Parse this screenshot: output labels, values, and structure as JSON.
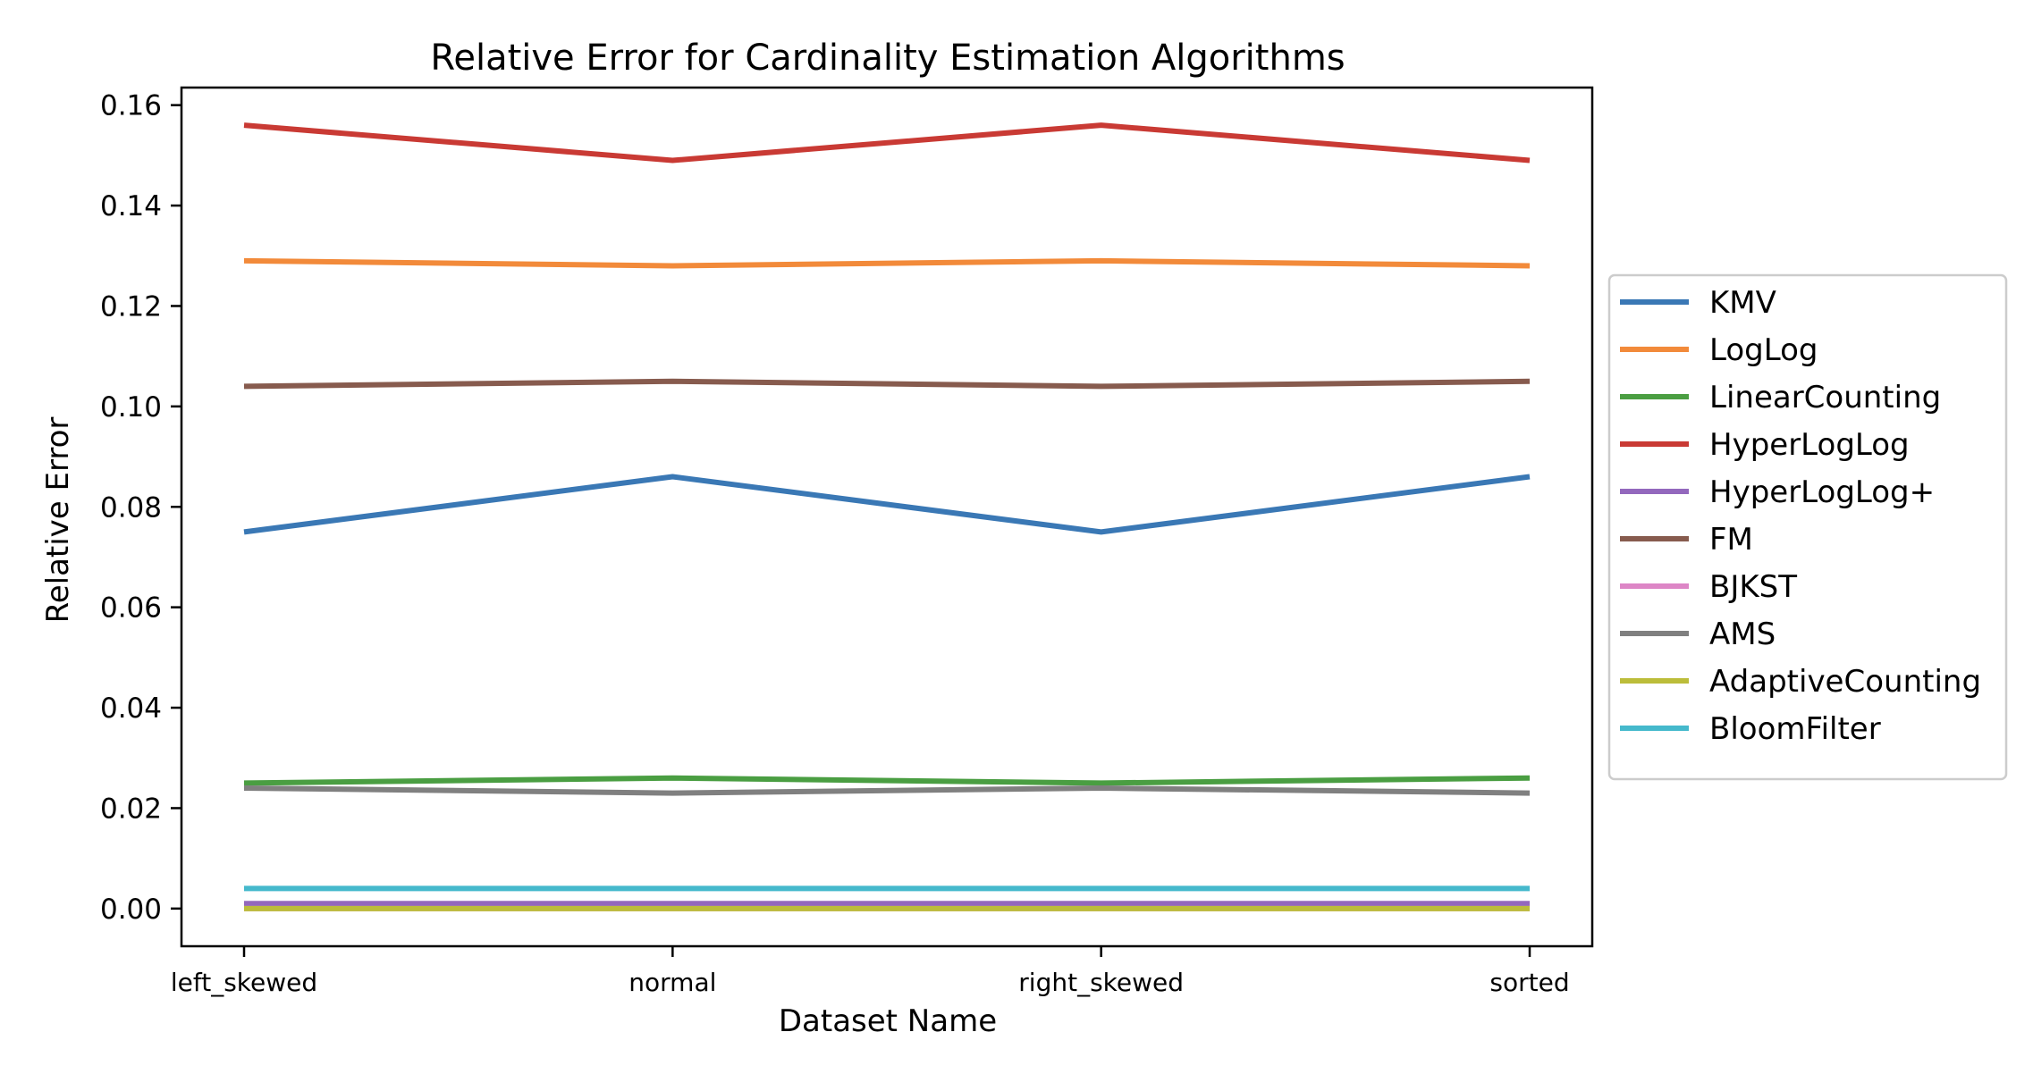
{
  "chart_data": {
    "type": "line",
    "title": "Relative Error for Cardinality Estimation Algorithms",
    "xlabel": "Dataset Name",
    "ylabel": "Relative Error",
    "categories": [
      "left_skewed",
      "normal",
      "right_skewed",
      "sorted"
    ],
    "ylim": [
      -0.0075,
      0.1635
    ],
    "yticks": [
      0.0,
      0.02,
      0.04,
      0.06,
      0.08,
      0.1,
      0.12,
      0.14,
      0.16
    ],
    "ytick_labels": [
      "0.00",
      "0.02",
      "0.04",
      "0.06",
      "0.08",
      "0.10",
      "0.12",
      "0.14",
      "0.16"
    ],
    "grid": false,
    "legend_position": "outside-right",
    "series": [
      {
        "name": "KMV",
        "color": "#3a78b5",
        "values": [
          0.075,
          0.086,
          0.075,
          0.086
        ]
      },
      {
        "name": "LogLog",
        "color": "#f28a3a",
        "values": [
          0.129,
          0.128,
          0.129,
          0.128
        ]
      },
      {
        "name": "LinearCounting",
        "color": "#4a9e42",
        "values": [
          0.025,
          0.026,
          0.025,
          0.026
        ]
      },
      {
        "name": "HyperLogLog",
        "color": "#c93a34",
        "values": [
          0.156,
          0.149,
          0.156,
          0.149
        ]
      },
      {
        "name": "HyperLogLog+",
        "color": "#9368bd",
        "values": [
          0.001,
          0.001,
          0.001,
          0.001
        ]
      },
      {
        "name": "FM",
        "color": "#875b4e",
        "values": [
          0.104,
          0.105,
          0.104,
          0.105
        ]
      },
      {
        "name": "BJKST",
        "color": "#dd86c6",
        "values": [
          0.0,
          0.0,
          0.0,
          0.0
        ]
      },
      {
        "name": "AMS",
        "color": "#808080",
        "values": [
          0.024,
          0.023,
          0.024,
          0.023
        ]
      },
      {
        "name": "AdaptiveCounting",
        "color": "#bcbd3a",
        "values": [
          0.0,
          0.0,
          0.0,
          0.0
        ]
      },
      {
        "name": "BloomFilter",
        "color": "#45b9cc",
        "values": [
          0.004,
          0.004,
          0.004,
          0.004
        ]
      }
    ]
  }
}
